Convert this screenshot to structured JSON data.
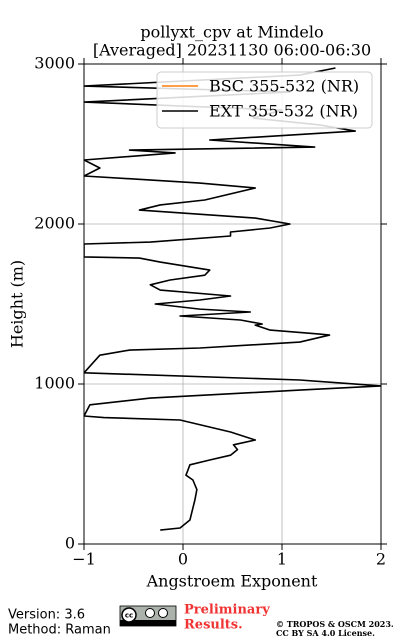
{
  "chart_data": {
    "type": "line",
    "title": [
      "pollyxt_cpv at Mindelo",
      "[Averaged] 20231130 06:00-06:30"
    ],
    "x_label": "Angstroem Exponent",
    "y_label": "Height (m)",
    "heights": [
      87,
      100,
      150,
      275,
      340,
      400,
      430,
      495,
      525,
      555,
      590,
      620,
      650,
      700,
      775,
      790,
      800,
      870,
      912,
      962,
      988,
      1025,
      1070,
      1180,
      1212,
      1225,
      1262,
      1306,
      1312,
      1337,
      1368,
      1375,
      1400,
      1425,
      1450,
      1468,
      1500,
      1525,
      1550,
      1587,
      1620,
      1650,
      1680,
      1712,
      1762,
      1787,
      1794,
      1875,
      1887,
      1925,
      1950,
      1975,
      2000,
      2037,
      2087,
      2119,
      2150,
      2225,
      2256,
      2300,
      2350,
      2400,
      2444,
      2462,
      2481,
      2525,
      2581,
      2619,
      2662,
      2712,
      2762,
      2825,
      2862,
      2931,
      2975
    ],
    "series": [
      {
        "name": "BSC 355-532 (NR)",
        "color": "#ff7f0e",
        "values": [
          null,
          null,
          null,
          null,
          null,
          null,
          null,
          null,
          null,
          null,
          null,
          null,
          null,
          null,
          null,
          null,
          null,
          null,
          null,
          null,
          null,
          null,
          null,
          null,
          null,
          null,
          null,
          null,
          null,
          null,
          null,
          null,
          null,
          null,
          null,
          null,
          null,
          null,
          null,
          null,
          null,
          null,
          null,
          null,
          null,
          null,
          null,
          null,
          null,
          null,
          null,
          null,
          null,
          null,
          null,
          null,
          null,
          null,
          null,
          null,
          null,
          null,
          null,
          null,
          null,
          null,
          null,
          null,
          null,
          null,
          null,
          null,
          null,
          null,
          null
        ]
      },
      {
        "name": "EXT 355-532 (NR)",
        "color": "#000000",
        "values": [
          -0.23,
          -0.03,
          0.07,
          0.12,
          0.14,
          0.1,
          0.03,
          0.07,
          0.27,
          0.48,
          0.55,
          0.51,
          0.73,
          0.48,
          -0.03,
          -0.8,
          -1,
          -0.94,
          -0.33,
          1.18,
          2,
          1.18,
          -1,
          -0.84,
          -0.54,
          0.17,
          1.18,
          1.48,
          1.38,
          0.88,
          0.73,
          0.8,
          0.58,
          -0.03,
          0.68,
          0.17,
          -0.28,
          0.17,
          0.48,
          -0.23,
          -0.33,
          -0.13,
          0.22,
          0.27,
          -0.23,
          -0.44,
          -1,
          -1,
          -0.33,
          0.48,
          0.48,
          0.88,
          1.08,
          0.73,
          -0.44,
          -0.23,
          0.22,
          0.73,
          0.17,
          -1,
          -0.84,
          -1,
          -0.08,
          -0.54,
          1.33,
          0.27,
          1.74,
          1.38,
          0.71,
          1.0,
          -1,
          1.08,
          -1,
          1.18,
          1.54
        ]
      }
    ],
    "xlim": [
      -1,
      2
    ],
    "xticks": [
      {
        "value": -1,
        "label": "−1"
      },
      0,
      1,
      2
    ],
    "ylim": [
      0,
      3000
    ],
    "yticks": [
      0,
      1000,
      2000,
      3000
    ],
    "grid": true,
    "legend": "upper right"
  },
  "footer": {
    "version": "Version: 3.6",
    "method": "Method: Raman",
    "notice": [
      "Preliminary",
      "Results."
    ],
    "license": [
      "© TROPOS & OSCM 2023.",
      "CC BY SA 4.0 License."
    ]
  }
}
